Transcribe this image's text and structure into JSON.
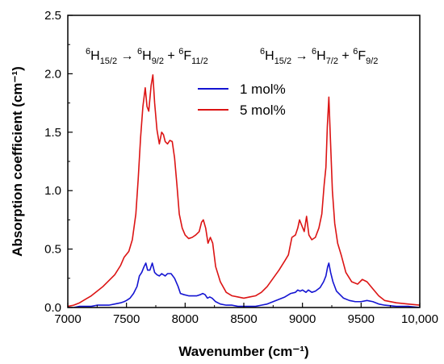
{
  "chart_data": {
    "type": "line",
    "title": "",
    "xlabel": "Wavenumber (cm⁻¹)",
    "ylabel": "Absorption coefficient (cm⁻¹)",
    "xlim": [
      7000,
      10000
    ],
    "ylim": [
      0,
      2.5
    ],
    "xticks": [
      7000,
      7500,
      8000,
      8500,
      9000,
      9500,
      10000
    ],
    "xtick_labels": [
      "7000",
      "7500",
      "8000",
      "8500",
      "9000",
      "9500",
      "10,000"
    ],
    "yticks": [
      0.0,
      0.5,
      1.0,
      1.5,
      2.0,
      2.5
    ],
    "ytick_labels": [
      "0.0",
      "0.5",
      "1.0",
      "1.5",
      "2.0",
      "2.5"
    ],
    "grid": false,
    "legend_position": "top-center",
    "annotations": [
      {
        "name": "transition-left",
        "parts": [
          {
            "t": "6",
            "s": "sup"
          },
          {
            "t": "H",
            "s": ""
          },
          {
            "t": "15/2",
            "s": "sub"
          },
          {
            "t": " → ",
            "s": ""
          },
          {
            "t": "6",
            "s": "sup"
          },
          {
            "t": "H",
            "s": ""
          },
          {
            "t": "9/2",
            "s": "sub"
          },
          {
            "t": " + ",
            "s": ""
          },
          {
            "t": "6",
            "s": "sup"
          },
          {
            "t": "F",
            "s": ""
          },
          {
            "t": "11/2",
            "s": "sub"
          }
        ]
      },
      {
        "name": "transition-right",
        "parts": [
          {
            "t": "6",
            "s": "sup"
          },
          {
            "t": "H",
            "s": ""
          },
          {
            "t": "15/2",
            "s": "sub"
          },
          {
            "t": " → ",
            "s": ""
          },
          {
            "t": "6",
            "s": "sup"
          },
          {
            "t": "H",
            "s": ""
          },
          {
            "t": "7/2",
            "s": "sub"
          },
          {
            "t": " + ",
            "s": ""
          },
          {
            "t": "6",
            "s": "sup"
          },
          {
            "t": "F",
            "s": ""
          },
          {
            "t": "9/2",
            "s": "sub"
          }
        ]
      }
    ],
    "series": [
      {
        "name": "1 mol%",
        "color": "#1414d2",
        "points": [
          [
            7000,
            0.0
          ],
          [
            7050,
            0.0
          ],
          [
            7100,
            0.01
          ],
          [
            7150,
            0.01
          ],
          [
            7200,
            0.01
          ],
          [
            7250,
            0.02
          ],
          [
            7300,
            0.02
          ],
          [
            7350,
            0.02
          ],
          [
            7400,
            0.03
          ],
          [
            7450,
            0.04
          ],
          [
            7480,
            0.05
          ],
          [
            7500,
            0.06
          ],
          [
            7530,
            0.08
          ],
          [
            7560,
            0.12
          ],
          [
            7590,
            0.18
          ],
          [
            7610,
            0.27
          ],
          [
            7630,
            0.3
          ],
          [
            7650,
            0.35
          ],
          [
            7665,
            0.38
          ],
          [
            7680,
            0.32
          ],
          [
            7700,
            0.32
          ],
          [
            7720,
            0.38
          ],
          [
            7740,
            0.3
          ],
          [
            7760,
            0.28
          ],
          [
            7780,
            0.27
          ],
          [
            7800,
            0.29
          ],
          [
            7830,
            0.27
          ],
          [
            7850,
            0.29
          ],
          [
            7880,
            0.29
          ],
          [
            7910,
            0.25
          ],
          [
            7940,
            0.18
          ],
          [
            7960,
            0.12
          ],
          [
            7990,
            0.11
          ],
          [
            8030,
            0.1
          ],
          [
            8070,
            0.1
          ],
          [
            8100,
            0.1
          ],
          [
            8130,
            0.11
          ],
          [
            8150,
            0.12
          ],
          [
            8170,
            0.11
          ],
          [
            8190,
            0.08
          ],
          [
            8210,
            0.09
          ],
          [
            8230,
            0.08
          ],
          [
            8260,
            0.05
          ],
          [
            8300,
            0.03
          ],
          [
            8350,
            0.02
          ],
          [
            8400,
            0.02
          ],
          [
            8450,
            0.01
          ],
          [
            8500,
            0.01
          ],
          [
            8550,
            0.01
          ],
          [
            8600,
            0.01
          ],
          [
            8650,
            0.02
          ],
          [
            8700,
            0.03
          ],
          [
            8750,
            0.05
          ],
          [
            8800,
            0.07
          ],
          [
            8850,
            0.09
          ],
          [
            8900,
            0.12
          ],
          [
            8940,
            0.13
          ],
          [
            8960,
            0.15
          ],
          [
            8980,
            0.14
          ],
          [
            9000,
            0.15
          ],
          [
            9030,
            0.13
          ],
          [
            9050,
            0.15
          ],
          [
            9080,
            0.13
          ],
          [
            9110,
            0.14
          ],
          [
            9150,
            0.17
          ],
          [
            9180,
            0.22
          ],
          [
            9200,
            0.27
          ],
          [
            9215,
            0.35
          ],
          [
            9225,
            0.38
          ],
          [
            9240,
            0.3
          ],
          [
            9260,
            0.22
          ],
          [
            9290,
            0.14
          ],
          [
            9320,
            0.11
          ],
          [
            9350,
            0.08
          ],
          [
            9400,
            0.06
          ],
          [
            9450,
            0.05
          ],
          [
            9500,
            0.05
          ],
          [
            9550,
            0.06
          ],
          [
            9600,
            0.05
          ],
          [
            9650,
            0.03
          ],
          [
            9700,
            0.02
          ],
          [
            9800,
            0.01
          ],
          [
            9900,
            0.01
          ],
          [
            10000,
            0.0
          ]
        ]
      },
      {
        "name": "5 mol%",
        "color": "#dc1414",
        "points": [
          [
            7000,
            0.01
          ],
          [
            7050,
            0.02
          ],
          [
            7100,
            0.04
          ],
          [
            7150,
            0.07
          ],
          [
            7200,
            0.1
          ],
          [
            7250,
            0.14
          ],
          [
            7300,
            0.18
          ],
          [
            7350,
            0.23
          ],
          [
            7400,
            0.28
          ],
          [
            7450,
            0.36
          ],
          [
            7480,
            0.43
          ],
          [
            7520,
            0.48
          ],
          [
            7550,
            0.58
          ],
          [
            7580,
            0.8
          ],
          [
            7600,
            1.1
          ],
          [
            7620,
            1.45
          ],
          [
            7640,
            1.72
          ],
          [
            7660,
            1.88
          ],
          [
            7675,
            1.72
          ],
          [
            7690,
            1.68
          ],
          [
            7710,
            1.9
          ],
          [
            7725,
            1.99
          ],
          [
            7740,
            1.75
          ],
          [
            7760,
            1.52
          ],
          [
            7780,
            1.4
          ],
          [
            7800,
            1.5
          ],
          [
            7815,
            1.48
          ],
          [
            7830,
            1.42
          ],
          [
            7850,
            1.4
          ],
          [
            7870,
            1.43
          ],
          [
            7890,
            1.42
          ],
          [
            7910,
            1.28
          ],
          [
            7930,
            1.05
          ],
          [
            7950,
            0.8
          ],
          [
            7975,
            0.68
          ],
          [
            8000,
            0.62
          ],
          [
            8030,
            0.59
          ],
          [
            8060,
            0.6
          ],
          [
            8090,
            0.62
          ],
          [
            8120,
            0.65
          ],
          [
            8140,
            0.73
          ],
          [
            8155,
            0.75
          ],
          [
            8175,
            0.68
          ],
          [
            8195,
            0.55
          ],
          [
            8215,
            0.6
          ],
          [
            8235,
            0.55
          ],
          [
            8260,
            0.35
          ],
          [
            8300,
            0.22
          ],
          [
            8350,
            0.13
          ],
          [
            8400,
            0.1
          ],
          [
            8450,
            0.09
          ],
          [
            8500,
            0.08
          ],
          [
            8550,
            0.09
          ],
          [
            8600,
            0.1
          ],
          [
            8650,
            0.13
          ],
          [
            8700,
            0.18
          ],
          [
            8750,
            0.25
          ],
          [
            8800,
            0.32
          ],
          [
            8850,
            0.4
          ],
          [
            8880,
            0.45
          ],
          [
            8910,
            0.6
          ],
          [
            8940,
            0.62
          ],
          [
            8960,
            0.68
          ],
          [
            8975,
            0.75
          ],
          [
            8995,
            0.7
          ],
          [
            9015,
            0.65
          ],
          [
            9035,
            0.78
          ],
          [
            9055,
            0.62
          ],
          [
            9080,
            0.58
          ],
          [
            9110,
            0.6
          ],
          [
            9140,
            0.68
          ],
          [
            9165,
            0.8
          ],
          [
            9185,
            1.05
          ],
          [
            9200,
            1.2
          ],
          [
            9212,
            1.55
          ],
          [
            9225,
            1.8
          ],
          [
            9238,
            1.45
          ],
          [
            9255,
            1.0
          ],
          [
            9275,
            0.72
          ],
          [
            9300,
            0.55
          ],
          [
            9330,
            0.45
          ],
          [
            9370,
            0.3
          ],
          [
            9420,
            0.22
          ],
          [
            9470,
            0.2
          ],
          [
            9510,
            0.24
          ],
          [
            9550,
            0.22
          ],
          [
            9600,
            0.16
          ],
          [
            9650,
            0.1
          ],
          [
            9700,
            0.06
          ],
          [
            9800,
            0.04
          ],
          [
            9900,
            0.03
          ],
          [
            10000,
            0.02
          ]
        ]
      }
    ]
  }
}
